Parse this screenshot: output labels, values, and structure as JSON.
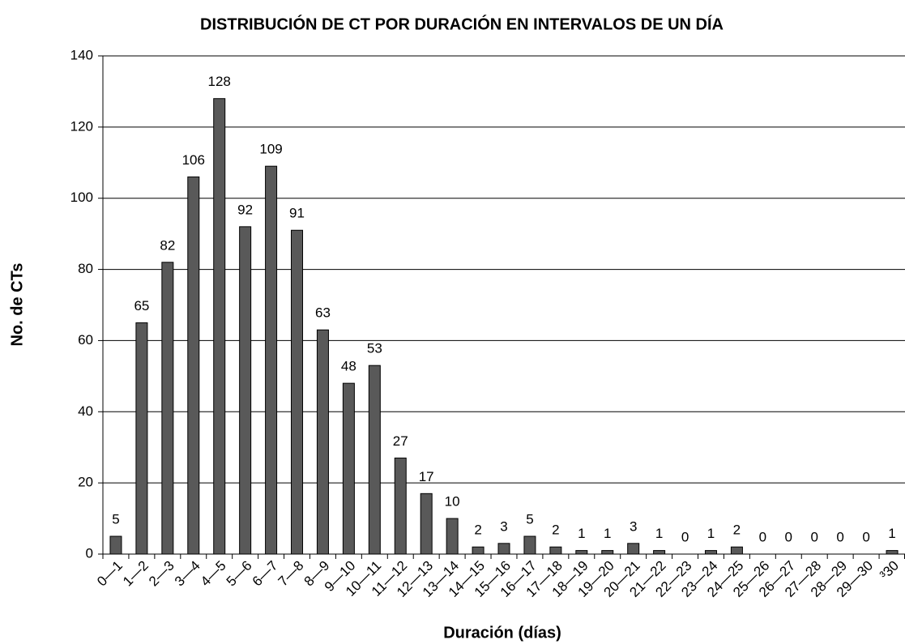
{
  "chart_data": {
    "type": "bar",
    "title": "DISTRIBUCIÓN DE CT POR DURACIÓN EN INTERVALOS DE UN DÍA",
    "x_label": "Duración (días)",
    "y_label": "No. de CTs",
    "categories": [
      "0—1",
      "1—2",
      "2—3",
      "3—4",
      "4—5",
      "5—6",
      "6—7",
      "7—8",
      "8—9",
      "9—10",
      "10—11",
      "11—12",
      "12—13",
      "13—14",
      "14—15",
      "15—16",
      "16—17",
      "17—18",
      "18—19",
      "19—20",
      "20—21",
      "21—22",
      "22—23",
      "23—24",
      "24—25",
      "25—26",
      "26—27",
      "27—28",
      "28—29",
      "29—30",
      "³30"
    ],
    "values": [
      5,
      65,
      82,
      106,
      128,
      92,
      109,
      91,
      63,
      48,
      53,
      27,
      17,
      10,
      2,
      3,
      5,
      2,
      1,
      1,
      3,
      1,
      0,
      1,
      2,
      0,
      0,
      0,
      0,
      0,
      1
    ],
    "color": "#595959",
    "ylim": [
      0,
      140
    ],
    "yticks": [
      0,
      20,
      40,
      60,
      80,
      100,
      120,
      140
    ],
    "grid": true
  }
}
